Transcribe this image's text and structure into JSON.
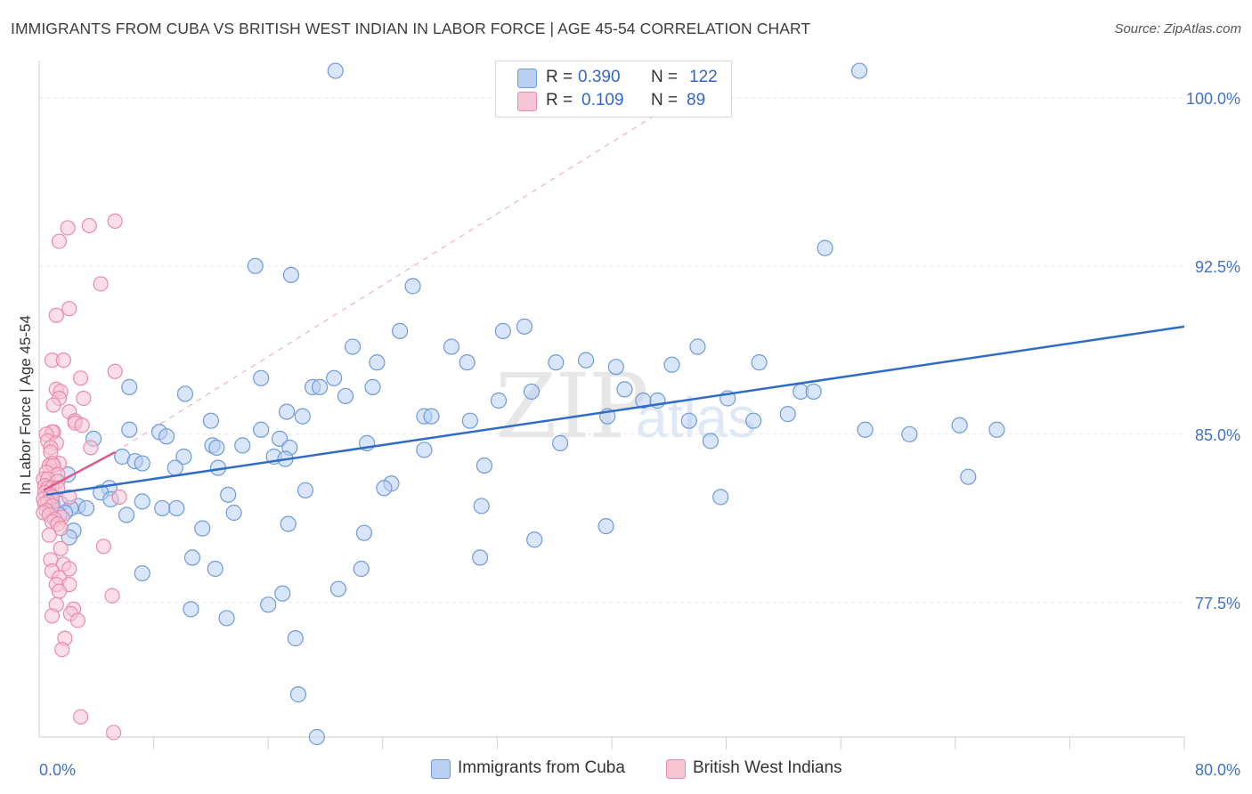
{
  "title": "IMMIGRANTS FROM CUBA VS BRITISH WEST INDIAN IN LABOR FORCE | AGE 45-54 CORRELATION CHART",
  "source": "Source: ZipAtlas.com",
  "watermark": {
    "zip": "ZIP",
    "atlas": "atlas"
  },
  "colors": {
    "blue_fill": "#b9d0f2",
    "blue_stroke": "#6f9ad9",
    "blue_line": "#2f6cc8",
    "pink_fill": "#f8c3d3",
    "pink_stroke": "#ea8aa9",
    "pink_line": "#e0588a",
    "axis_label": "#3f72c6",
    "grid": "#e6e6e6"
  },
  "legend_top": [
    {
      "r_label": "R =",
      "r_value": "0.390",
      "n_label": "N =",
      "n_value": "122"
    },
    {
      "r_label": "R =",
      "r_value": "0.109",
      "n_label": "N =",
      "n_value": "89"
    }
  ],
  "legend_bottom": [
    "Immigrants from Cuba",
    "British West Indians"
  ],
  "chart_data": {
    "type": "scatter",
    "ylabel": "In Labor Force | Age 45-54",
    "xlim": [
      0,
      80
    ],
    "ylim": [
      71.5,
      101.5
    ],
    "x_tick_labels": {
      "left": "0.0%",
      "right": "80.0%"
    },
    "y_ticks": [
      100.0,
      92.5,
      85.0,
      77.5
    ],
    "y_tick_labels": [
      "100.0%",
      "92.5%",
      "85.0%",
      "77.5%"
    ],
    "grid": "horizontal dashed",
    "series": [
      {
        "name": "Immigrants from Cuba",
        "color": "blue",
        "trend": {
          "x": [
            0.5,
            80
          ],
          "y": [
            82.3,
            89.8
          ]
        },
        "points": [
          [
            20.7,
            101.2
          ],
          [
            57.3,
            101.2
          ],
          [
            54.9,
            93.3
          ],
          [
            15.1,
            92.5
          ],
          [
            17.6,
            92.1
          ],
          [
            26.1,
            91.6
          ],
          [
            25.2,
            89.6
          ],
          [
            32.4,
            89.6
          ],
          [
            33.9,
            89.8
          ],
          [
            28.8,
            88.9
          ],
          [
            21.9,
            88.9
          ],
          [
            46.0,
            88.9
          ],
          [
            29.9,
            88.2
          ],
          [
            23.6,
            88.2
          ],
          [
            36.1,
            88.2
          ],
          [
            38.2,
            88.3
          ],
          [
            40.3,
            88.0
          ],
          [
            44.2,
            88.1
          ],
          [
            50.3,
            88.2
          ],
          [
            15.5,
            87.5
          ],
          [
            20.6,
            87.5
          ],
          [
            19.1,
            87.1
          ],
          [
            19.6,
            87.1
          ],
          [
            23.3,
            87.1
          ],
          [
            34.4,
            86.9
          ],
          [
            40.9,
            87.0
          ],
          [
            53.2,
            86.9
          ],
          [
            54.1,
            86.9
          ],
          [
            6.3,
            87.1
          ],
          [
            10.2,
            86.8
          ],
          [
            21.4,
            86.7
          ],
          [
            32.1,
            86.5
          ],
          [
            43.2,
            86.5
          ],
          [
            42.2,
            86.5
          ],
          [
            48.1,
            86.6
          ],
          [
            18.4,
            85.8
          ],
          [
            17.3,
            86.0
          ],
          [
            26.9,
            85.8
          ],
          [
            27.4,
            85.8
          ],
          [
            30.1,
            85.6
          ],
          [
            52.3,
            85.9
          ],
          [
            39.7,
            85.8
          ],
          [
            45.4,
            85.6
          ],
          [
            49.9,
            85.6
          ],
          [
            12.0,
            85.6
          ],
          [
            6.3,
            85.2
          ],
          [
            8.4,
            85.1
          ],
          [
            8.9,
            84.9
          ],
          [
            15.5,
            85.2
          ],
          [
            16.8,
            84.8
          ],
          [
            57.7,
            85.2
          ],
          [
            60.8,
            85.0
          ],
          [
            64.3,
            85.4
          ],
          [
            66.9,
            85.2
          ],
          [
            3.8,
            84.8
          ],
          [
            12.1,
            84.5
          ],
          [
            12.4,
            84.4
          ],
          [
            14.2,
            84.5
          ],
          [
            22.9,
            84.6
          ],
          [
            26.9,
            84.3
          ],
          [
            17.5,
            84.4
          ],
          [
            36.4,
            84.6
          ],
          [
            46.9,
            84.7
          ],
          [
            5.8,
            84.0
          ],
          [
            10.1,
            84.0
          ],
          [
            16.4,
            84.0
          ],
          [
            17.2,
            83.9
          ],
          [
            6.7,
            83.8
          ],
          [
            7.2,
            83.7
          ],
          [
            9.5,
            83.5
          ],
          [
            12.5,
            83.5
          ],
          [
            31.1,
            83.6
          ],
          [
            2.0,
            83.2
          ],
          [
            64.9,
            83.1
          ],
          [
            24.6,
            82.8
          ],
          [
            24.1,
            82.6
          ],
          [
            4.9,
            82.6
          ],
          [
            4.3,
            82.4
          ],
          [
            18.6,
            82.5
          ],
          [
            13.2,
            82.3
          ],
          [
            47.6,
            82.2
          ],
          [
            5.0,
            82.1
          ],
          [
            7.2,
            82.0
          ],
          [
            1.5,
            81.9
          ],
          [
            2.7,
            81.8
          ],
          [
            0.8,
            81.7
          ],
          [
            0.9,
            81.9
          ],
          [
            30.9,
            81.8
          ],
          [
            8.6,
            81.7
          ],
          [
            9.6,
            81.7
          ],
          [
            13.6,
            81.5
          ],
          [
            3.3,
            81.7
          ],
          [
            2.2,
            81.7
          ],
          [
            1.8,
            81.5
          ],
          [
            1.4,
            81.4
          ],
          [
            6.1,
            81.4
          ],
          [
            17.4,
            81.0
          ],
          [
            11.4,
            80.8
          ],
          [
            39.6,
            80.9
          ],
          [
            2.4,
            80.7
          ],
          [
            22.7,
            80.6
          ],
          [
            2.1,
            80.4
          ],
          [
            34.6,
            80.3
          ],
          [
            30.8,
            79.5
          ],
          [
            10.7,
            79.5
          ],
          [
            12.3,
            79.0
          ],
          [
            22.5,
            79.0
          ],
          [
            7.2,
            78.8
          ],
          [
            20.9,
            78.1
          ],
          [
            17.0,
            77.9
          ],
          [
            16.0,
            77.4
          ],
          [
            10.6,
            77.2
          ],
          [
            13.1,
            76.8
          ],
          [
            17.9,
            75.9
          ],
          [
            18.1,
            73.4
          ],
          [
            19.4,
            71.5
          ]
        ]
      },
      {
        "name": "British West Indians",
        "color": "pink",
        "trend": {
          "x": [
            0.3,
            5.3
          ],
          "y": [
            82.5,
            84.2
          ]
        },
        "points": [
          [
            5.3,
            94.5
          ],
          [
            3.5,
            94.3
          ],
          [
            2.0,
            94.2
          ],
          [
            1.4,
            93.6
          ],
          [
            4.3,
            91.7
          ],
          [
            2.1,
            90.6
          ],
          [
            1.2,
            90.3
          ],
          [
            0.9,
            88.3
          ],
          [
            1.7,
            88.3
          ],
          [
            5.3,
            87.8
          ],
          [
            2.9,
            87.5
          ],
          [
            1.2,
            87.0
          ],
          [
            1.5,
            86.9
          ],
          [
            1.4,
            86.6
          ],
          [
            3.1,
            86.6
          ],
          [
            1.0,
            86.3
          ],
          [
            2.1,
            86.0
          ],
          [
            2.5,
            85.6
          ],
          [
            2.5,
            85.5
          ],
          [
            3.0,
            85.4
          ],
          [
            1.0,
            85.1
          ],
          [
            0.9,
            85.1
          ],
          [
            0.5,
            85.0
          ],
          [
            0.6,
            84.7
          ],
          [
            1.2,
            84.6
          ],
          [
            0.8,
            84.4
          ],
          [
            3.6,
            84.4
          ],
          [
            0.8,
            84.2
          ],
          [
            1.4,
            83.7
          ],
          [
            0.9,
            83.7
          ],
          [
            0.7,
            83.6
          ],
          [
            1.0,
            83.6
          ],
          [
            0.5,
            83.3
          ],
          [
            1.3,
            83.2
          ],
          [
            0.3,
            83.0
          ],
          [
            0.6,
            83.0
          ],
          [
            1.3,
            82.9
          ],
          [
            0.4,
            82.7
          ],
          [
            0.6,
            82.6
          ],
          [
            0.9,
            82.6
          ],
          [
            1.3,
            82.6
          ],
          [
            0.4,
            82.4
          ],
          [
            0.8,
            82.3
          ],
          [
            0.9,
            82.2
          ],
          [
            2.1,
            82.2
          ],
          [
            5.6,
            82.2
          ],
          [
            0.3,
            82.1
          ],
          [
            0.6,
            82.0
          ],
          [
            0.4,
            81.9
          ],
          [
            0.9,
            81.8
          ],
          [
            0.5,
            81.6
          ],
          [
            0.3,
            81.5
          ],
          [
            0.7,
            81.4
          ],
          [
            1.6,
            81.3
          ],
          [
            1.1,
            81.2
          ],
          [
            0.9,
            81.1
          ],
          [
            1.3,
            81.0
          ],
          [
            1.5,
            80.8
          ],
          [
            0.7,
            80.5
          ],
          [
            4.5,
            80.0
          ],
          [
            1.5,
            79.9
          ],
          [
            0.8,
            79.4
          ],
          [
            1.7,
            79.2
          ],
          [
            2.1,
            79.0
          ],
          [
            0.9,
            78.9
          ],
          [
            1.4,
            78.6
          ],
          [
            1.2,
            78.3
          ],
          [
            2.1,
            78.3
          ],
          [
            1.4,
            78.0
          ],
          [
            5.1,
            77.8
          ],
          [
            1.2,
            77.4
          ],
          [
            2.4,
            77.2
          ],
          [
            2.2,
            77.0
          ],
          [
            0.9,
            76.9
          ],
          [
            2.7,
            76.7
          ],
          [
            1.8,
            75.9
          ],
          [
            1.6,
            75.4
          ],
          [
            2.9,
            72.4
          ],
          [
            5.2,
            71.7
          ]
        ]
      }
    ],
    "reference_line": {
      "style": "dashed",
      "color": "pink",
      "x": [
        5.3,
        48.0
      ],
      "y": [
        84.2,
        101.2
      ]
    }
  }
}
